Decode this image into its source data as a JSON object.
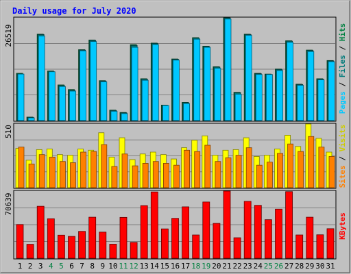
{
  "chart_data": {
    "type": "bar",
    "title": "Daily usage for July 2020",
    "categories": [
      "1",
      "2",
      "3",
      "4",
      "5",
      "6",
      "7",
      "8",
      "9",
      "10",
      "11",
      "12",
      "13",
      "14",
      "15",
      "16",
      "17",
      "18",
      "19",
      "20",
      "21",
      "22",
      "23",
      "24",
      "25",
      "26",
      "27",
      "28",
      "29",
      "30",
      "31"
    ],
    "weekend_days": [
      "4",
      "5",
      "11",
      "12",
      "18",
      "19",
      "25",
      "26"
    ],
    "panels": [
      {
        "id": "top",
        "max_label": "26519",
        "ylim": [
          0,
          26519
        ],
        "series": [
          {
            "name": "Pages",
            "color": "#00c8ff",
            "values": [
              12000,
              700,
              21800,
              12600,
              8800,
              7600,
              18000,
              20400,
              10000,
              2400,
              1800,
              18900,
              10400,
              19600,
              3900,
              15600,
              4400,
              21000,
              18900,
              13500,
              26200,
              6800,
              22000,
              11900,
              11900,
              12900,
              20200,
              9100,
              17800,
              10500,
              15200
            ]
          },
          {
            "name": "Files",
            "color": "#007a7a",
            "values": [
              12000,
              800,
              22200,
              12600,
              9000,
              7800,
              18200,
              20700,
              10200,
              2600,
              2000,
              19400,
              10700,
              19900,
              3900,
              15800,
              4600,
              21300,
              19100,
              13800,
              26500,
              7200,
              22200,
              12100,
              11900,
              13200,
              20500,
              9300,
              18100,
              10700,
              15400
            ]
          },
          {
            "name": "Hits",
            "color": "#008040",
            "values": [
              12200,
              900,
              22300,
              12800,
              9200,
              8000,
              18300,
              20800,
              10300,
              2700,
              2100,
              19600,
              10800,
              20000,
              4000,
              15900,
              4700,
              21400,
              19200,
              13900,
              26519,
              7300,
              22300,
              12200,
              12000,
              13300,
              20600,
              9400,
              18200,
              10800,
              15500
            ]
          }
        ],
        "legend_colors": [
          "#00c8ff",
          "#007a7a",
          "#008040"
        ]
      },
      {
        "id": "middle",
        "max_label": "510",
        "ylim": [
          0,
          510
        ],
        "series": [
          {
            "name": "Sites",
            "color": "#ff8000",
            "values": [
              325,
              190,
              265,
              245,
              210,
              200,
              285,
              290,
              345,
              170,
              270,
              175,
              195,
              210,
              195,
              180,
              300,
              290,
              340,
              210,
              240,
              260,
              320,
              180,
              205,
              275,
              350,
              290,
              410,
              325,
              250
            ]
          },
          {
            "name": "Visits",
            "color": "#ffff00",
            "values": [
              315,
              220,
              305,
              310,
              265,
              260,
              310,
              300,
              440,
              245,
              400,
              225,
              270,
              285,
              265,
              230,
              320,
              380,
              415,
              260,
              300,
              305,
              400,
              250,
              260,
              310,
              420,
              330,
              510,
              395,
              285
            ]
          }
        ],
        "legend_colors": [
          "#ff8000",
          "#ffff00"
        ]
      },
      {
        "id": "bottom",
        "max_label": "70639",
        "ylim": [
          0,
          70639
        ],
        "series": [
          {
            "name": "KBytes",
            "color": "#ff0000",
            "values": [
              35500,
              14700,
              54700,
              41600,
              24300,
              23000,
              28300,
              43200,
              27500,
              14800,
              43000,
              16700,
              55400,
              69800,
              30900,
              42000,
              54100,
              24500,
              59200,
              36700,
              70639,
              21600,
              59900,
              55700,
              40600,
              51700,
              70100,
              24500,
              43200,
              24700,
              31100
            ]
          }
        ],
        "legend_colors": [
          "#ff0000"
        ]
      }
    ],
    "colors": {
      "background": "#c0c0c0",
      "title": "#0000ff",
      "weekday_label": "#000000",
      "weekend_label": "#008040"
    }
  }
}
